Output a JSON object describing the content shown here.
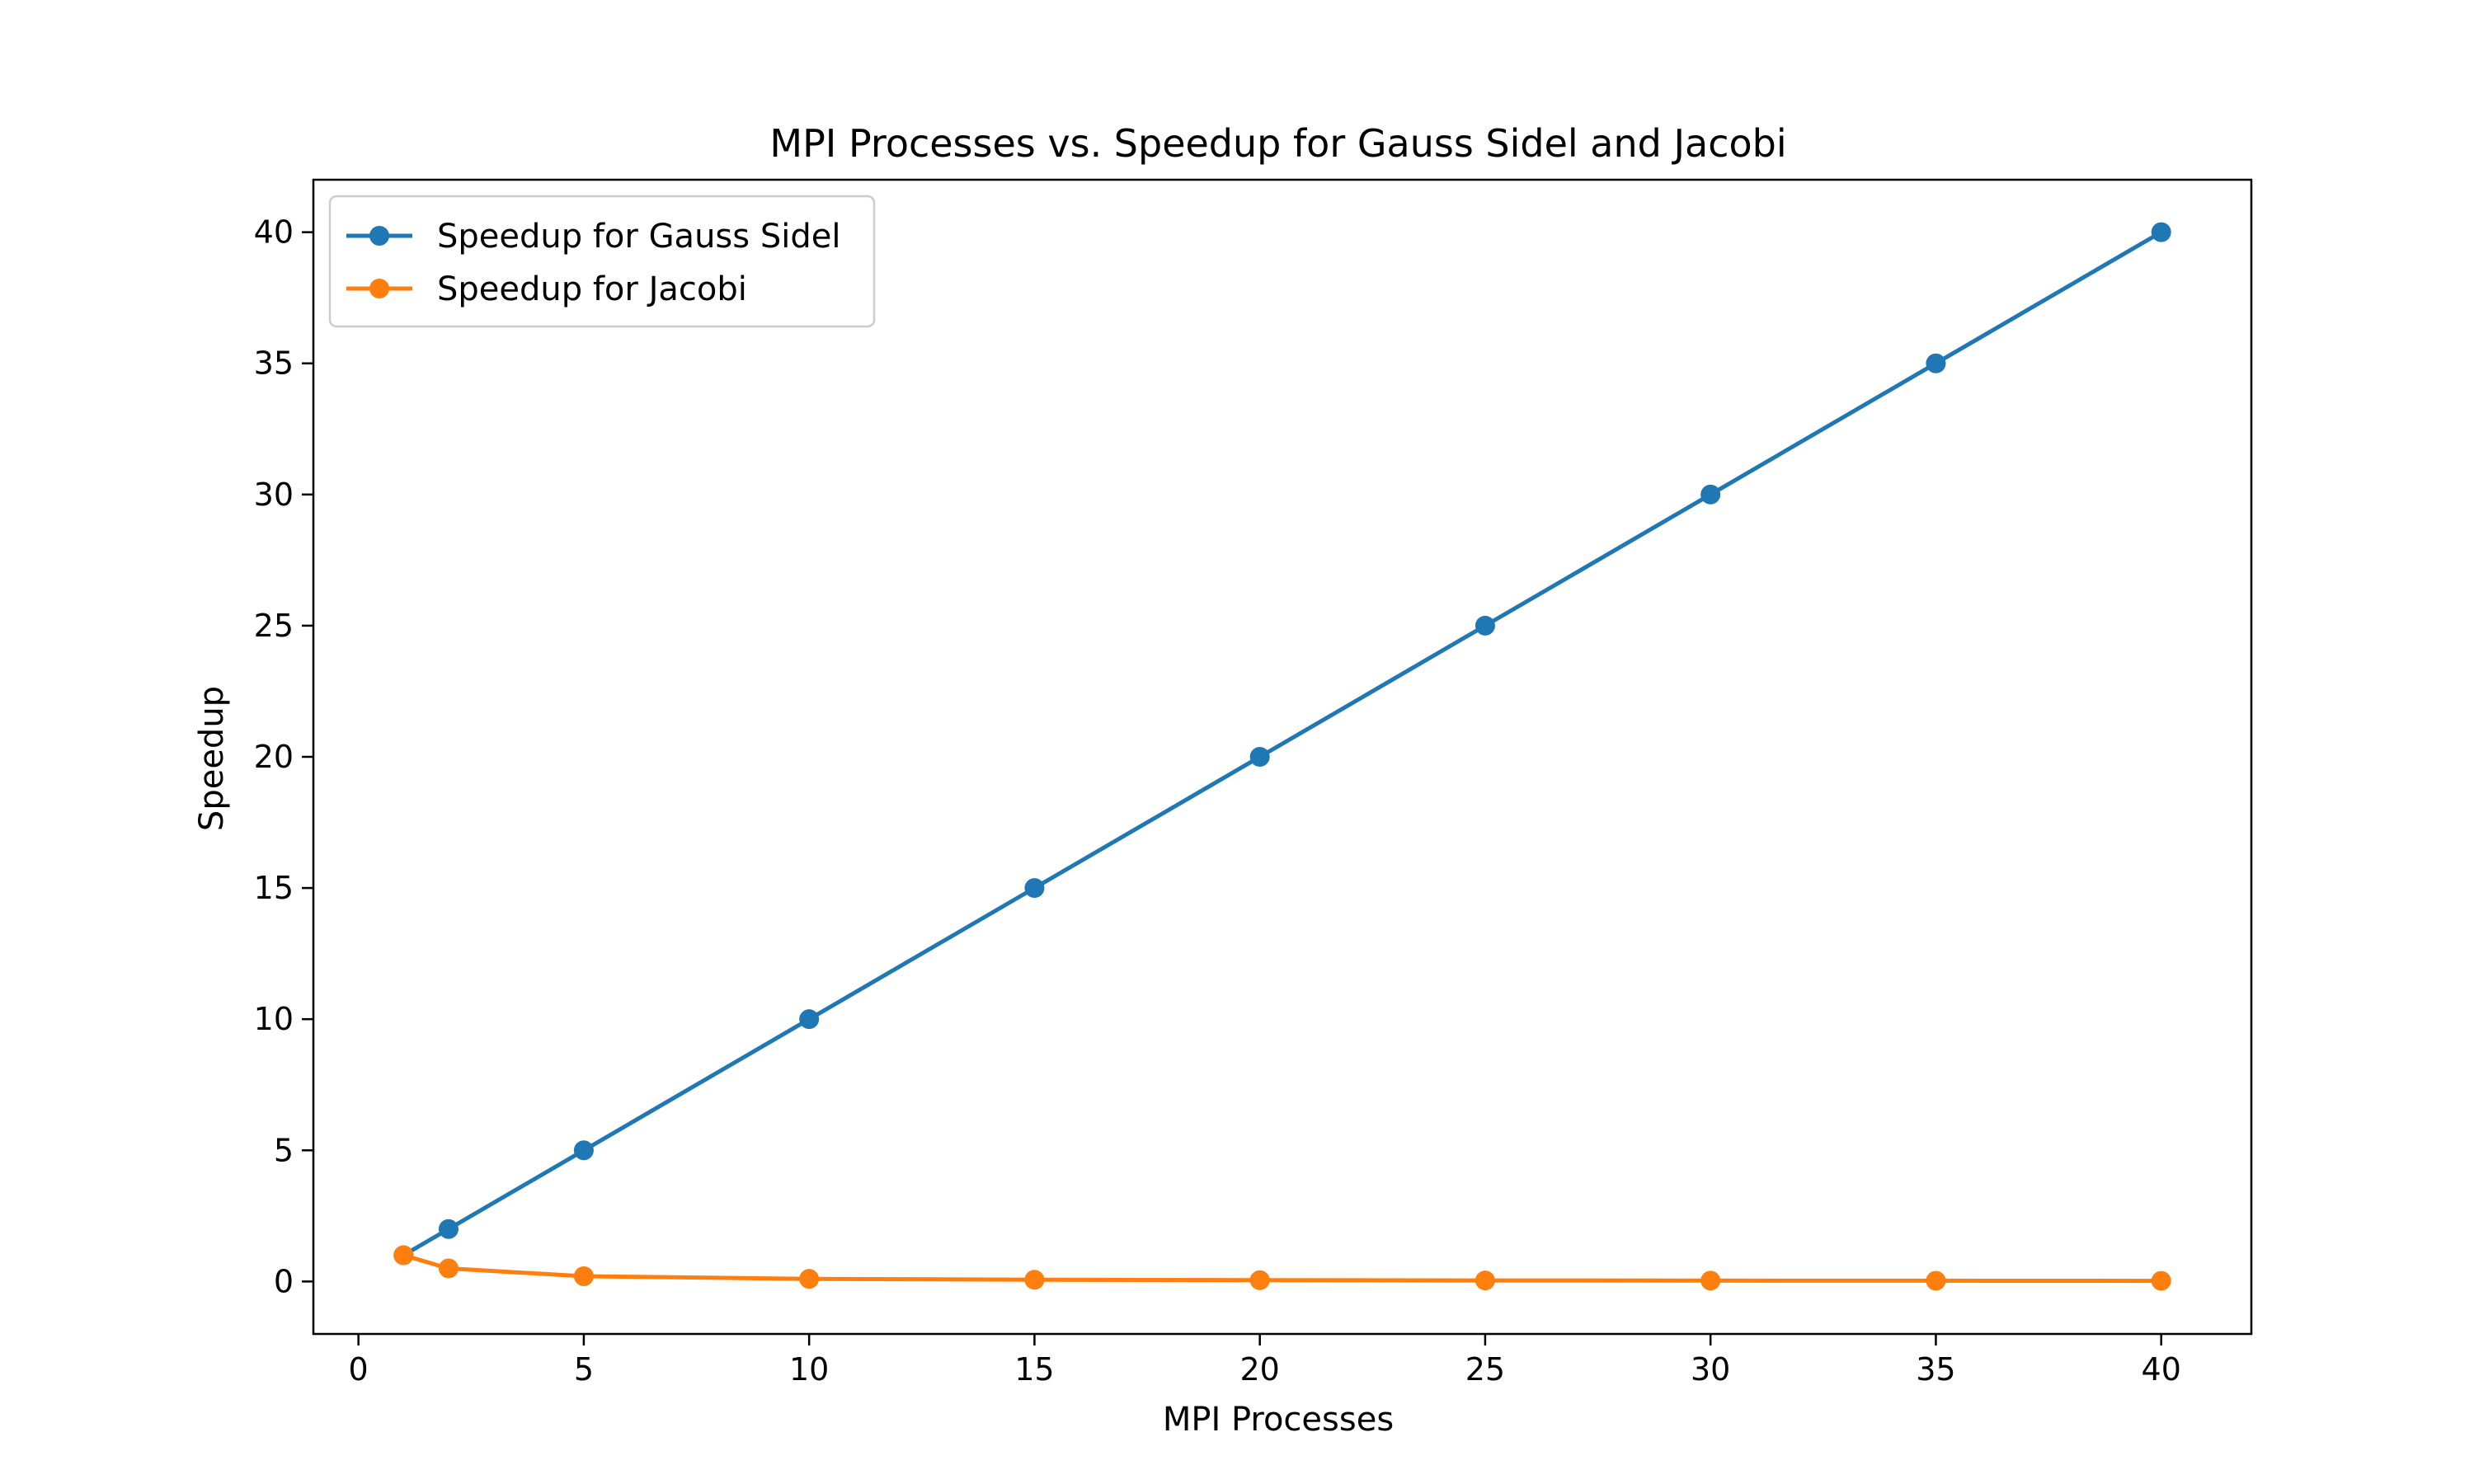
{
  "chart_data": {
    "type": "line",
    "title": "MPI Processes vs. Speedup for Gauss Sidel and Jacobi",
    "xlabel": "MPI Processes",
    "ylabel": "Speedup",
    "xlim": [
      -1,
      42
    ],
    "ylim": [
      -2,
      42
    ],
    "xticks": [
      0,
      5,
      10,
      15,
      20,
      25,
      30,
      35,
      40
    ],
    "yticks": [
      0,
      5,
      10,
      15,
      20,
      25,
      30,
      35,
      40
    ],
    "grid": false,
    "legend_position": "top-left",
    "series": [
      {
        "name": "Speedup for Gauss Sidel",
        "color": "#1f77b4",
        "marker": "circle",
        "x": [
          1,
          2,
          5,
          10,
          15,
          20,
          25,
          30,
          35,
          40
        ],
        "y": [
          1,
          2,
          5,
          10,
          15,
          20,
          25,
          30,
          35,
          40
        ]
      },
      {
        "name": "Speedup for Jacobi",
        "color": "#ff7f0e",
        "marker": "circle",
        "x": [
          1,
          2,
          5,
          10,
          15,
          20,
          25,
          30,
          35,
          40
        ],
        "y": [
          1,
          0.5,
          0.2,
          0.1,
          0.067,
          0.05,
          0.04,
          0.033,
          0.029,
          0.025
        ]
      }
    ]
  }
}
